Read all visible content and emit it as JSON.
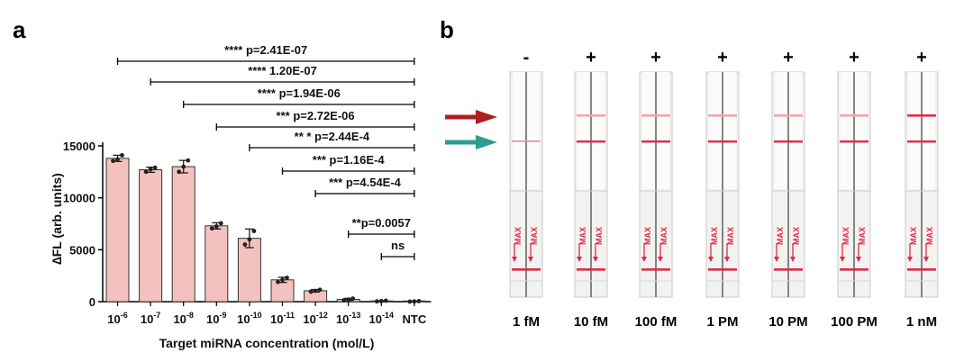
{
  "panel_a": {
    "label": "a",
    "chart_data": {
      "type": "bar",
      "title": "",
      "xlabel": "Target miRNA concentration (mol/L)",
      "ylabel": "∆FL (arb. units)",
      "ylim": [
        0,
        15000
      ],
      "yticks": [
        "0",
        "5000",
        "10000",
        "15000"
      ],
      "categories": [
        {
          "base": "10",
          "exp": "-6"
        },
        {
          "base": "10",
          "exp": "-7"
        },
        {
          "base": "10",
          "exp": "-8"
        },
        {
          "base": "10",
          "exp": "-9"
        },
        {
          "base": "10",
          "exp": "-10"
        },
        {
          "base": "10",
          "exp": "-11"
        },
        {
          "base": "10",
          "exp": "-12"
        },
        {
          "base": "10",
          "exp": "-13"
        },
        {
          "base": "10",
          "exp": "-14"
        },
        {
          "base": "NTC",
          "exp": ""
        }
      ],
      "values": [
        13800,
        12700,
        13000,
        7300,
        6100,
        2100,
        1050,
        220,
        50,
        30
      ],
      "errors": [
        300,
        250,
        600,
        300,
        900,
        250,
        120,
        100,
        40,
        30
      ],
      "points": [
        [
          13550,
          13700,
          14100
        ],
        [
          12500,
          12750,
          12900
        ],
        [
          12500,
          13000,
          13600
        ],
        [
          7050,
          7250,
          7550
        ],
        [
          5500,
          6000,
          6800
        ],
        [
          1900,
          2100,
          2300
        ],
        [
          960,
          1040,
          1150
        ],
        [
          130,
          200,
          300
        ],
        [
          30,
          60,
          90
        ],
        [
          10,
          30,
          50
        ]
      ],
      "bar_color": "#F4C2BE",
      "grid": false,
      "comparisons": [
        {
          "from": 0,
          "text": "**** p=2.41E-07"
        },
        {
          "from": 1,
          "text": "**** 1.20E-07"
        },
        {
          "from": 2,
          "text": "**** p=1.94E-06"
        },
        {
          "from": 3,
          "text": "*** p=2.72E-06"
        },
        {
          "from": 4,
          "text": "** * p=2.44E-4"
        },
        {
          "from": 5,
          "text": "*** p=1.16E-4"
        },
        {
          "from": 6,
          "text": "*** p=4.54E-4"
        },
        {
          "from": 7,
          "text": "**p=0.0057"
        },
        {
          "from": 8,
          "text": "ns"
        }
      ]
    }
  },
  "panel_b": {
    "label": "b",
    "arrow_colors": [
      "#B01E22",
      "#2E9C92"
    ],
    "strips": [
      {
        "sign": "-",
        "label": "1 fM",
        "test_line": "none",
        "control_line": "faint"
      },
      {
        "sign": "+",
        "label": "10 fM",
        "test_line": "faint",
        "control_line": "strong"
      },
      {
        "sign": "+",
        "label": "100 fM",
        "test_line": "faint",
        "control_line": "strong"
      },
      {
        "sign": "+",
        "label": "1 PM",
        "test_line": "faint",
        "control_line": "strong"
      },
      {
        "sign": "+",
        "label": "10 PM",
        "test_line": "faint",
        "control_line": "strong"
      },
      {
        "sign": "+",
        "label": "100 PM",
        "test_line": "faint",
        "control_line": "strong"
      },
      {
        "sign": "+",
        "label": "1 nM",
        "test_line": "strong",
        "control_line": "strong"
      }
    ],
    "max_mark": "MAX"
  }
}
